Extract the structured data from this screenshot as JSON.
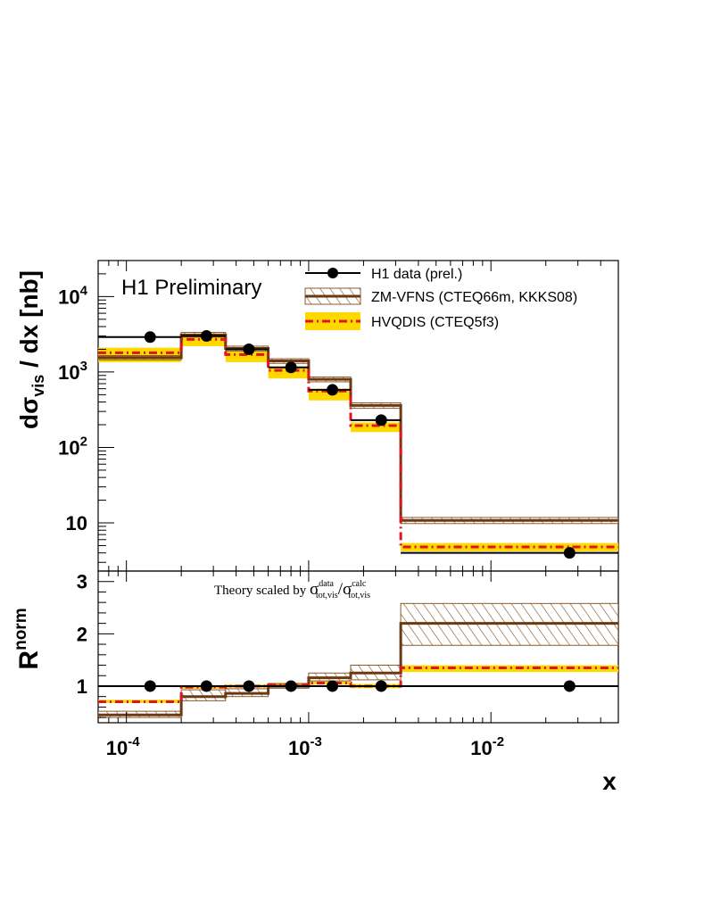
{
  "annotations": {
    "preliminary": "H1 Preliminary",
    "theory_note": {
      "main": "Theory scaled by ",
      "sigma": "σ",
      "sup1": "data",
      "sub1": "tot,vis",
      "slash": "/",
      "sup2": "calc",
      "sub2": "tot,vis"
    }
  },
  "legend": [
    {
      "label": "H1 data (prel.)"
    },
    {
      "label": "ZM-VFNS (CTEQ66m, KKKS08)"
    },
    {
      "label": "HVQDIS (CTEQ5f3)"
    }
  ],
  "colors": {
    "data": "#000000",
    "zmvfns": "#6b3a12",
    "zmvfns_hatch": "#8b5a2b",
    "hvqdis_line": "#e0141e",
    "hvqdis_band": "#ffd800"
  },
  "chart_data": [
    {
      "type": "line",
      "panel": "top",
      "ylabel": {
        "d": "dσ",
        "sub": "vis",
        "rest": " / dx [nb]"
      },
      "yscale": "log",
      "xscale": "log",
      "xlim": [
        7e-05,
        0.05
      ],
      "ylim": [
        2.3,
        30000
      ],
      "y_ticks": [
        {
          "base": "10",
          "exp": "4"
        },
        {
          "base": "10",
          "exp": "3"
        },
        {
          "base": "10",
          "exp": "2"
        },
        {
          "base": "10",
          "exp": ""
        }
      ],
      "bins": [
        [
          7e-05,
          0.0002
        ],
        [
          0.0002,
          0.00035
        ],
        [
          0.00035,
          0.0006
        ],
        [
          0.0006,
          0.001
        ],
        [
          0.001,
          0.0017
        ],
        [
          0.0017,
          0.0032
        ],
        [
          0.0032,
          0.05
        ]
      ],
      "series": [
        {
          "name": "H1 data (prel.)",
          "x": [
            0.000135,
            0.000275,
            0.00047,
            0.0008,
            0.00135,
            0.0025,
            0.027
          ],
          "values": [
            2900,
            3000,
            2000,
            1150,
            580,
            230,
            4.0
          ]
        },
        {
          "name": "ZM-VFNS (CTEQ66m, KKKS08)",
          "values": [
            1550,
            3100,
            2050,
            1400,
            800,
            360,
            10.8
          ],
          "band_low": [
            1450,
            2900,
            1900,
            1300,
            740,
            330,
            9.8
          ],
          "band_high": [
            1650,
            3350,
            2200,
            1500,
            860,
            390,
            11.8
          ]
        },
        {
          "name": "HVQDIS (CTEQ5f3)",
          "values": [
            1800,
            2700,
            1700,
            1050,
            560,
            195,
            4.8
          ],
          "band_low": [
            1350,
            2200,
            1350,
            820,
            420,
            160,
            4.2
          ],
          "band_high": [
            2100,
            2950,
            1900,
            1180,
            600,
            215,
            5.4
          ]
        }
      ]
    },
    {
      "type": "line",
      "panel": "bottom",
      "ylabel": {
        "main": "R",
        "sup": "norm"
      },
      "xlabel": "x",
      "xscale": "log",
      "xlim": [
        7e-05,
        0.05
      ],
      "ylim": [
        0.3,
        3.2
      ],
      "y_ticks": [
        "1",
        "2",
        "3"
      ],
      "x_ticks": [
        {
          "base": "10",
          "exp": "-4"
        },
        {
          "base": "10",
          "exp": "-3"
        },
        {
          "base": "10",
          "exp": "-2"
        }
      ],
      "bins": [
        [
          7e-05,
          0.0002
        ],
        [
          0.0002,
          0.00035
        ],
        [
          0.00035,
          0.0006
        ],
        [
          0.0006,
          0.001
        ],
        [
          0.001,
          0.0017
        ],
        [
          0.0017,
          0.0032
        ],
        [
          0.0032,
          0.05
        ]
      ],
      "series": [
        {
          "name": "H1 data (prel.)",
          "x": [
            0.000135,
            0.000275,
            0.00047,
            0.0008,
            0.00135,
            0.0025,
            0.027
          ],
          "values": [
            1,
            1,
            1,
            1,
            1,
            1,
            1
          ]
        },
        {
          "name": "ZM-VFNS (CTEQ66m, KKKS08)",
          "values": [
            0.45,
            0.8,
            0.86,
            1.0,
            1.16,
            1.25,
            2.2
          ],
          "band_low": [
            0.4,
            0.72,
            0.8,
            0.96,
            1.1,
            1.12,
            1.78
          ],
          "band_high": [
            0.52,
            0.93,
            0.95,
            1.05,
            1.25,
            1.4,
            2.58
          ]
        },
        {
          "name": "HVQDIS (CTEQ5f3)",
          "values": [
            0.7,
            0.98,
            1.0,
            1.02,
            1.06,
            1.0,
            1.35
          ],
          "band_low": [
            0.68,
            0.95,
            0.97,
            0.99,
            1.03,
            0.96,
            1.27
          ],
          "band_high": [
            0.74,
            1.01,
            1.03,
            1.06,
            1.09,
            1.04,
            1.4
          ]
        }
      ]
    }
  ]
}
